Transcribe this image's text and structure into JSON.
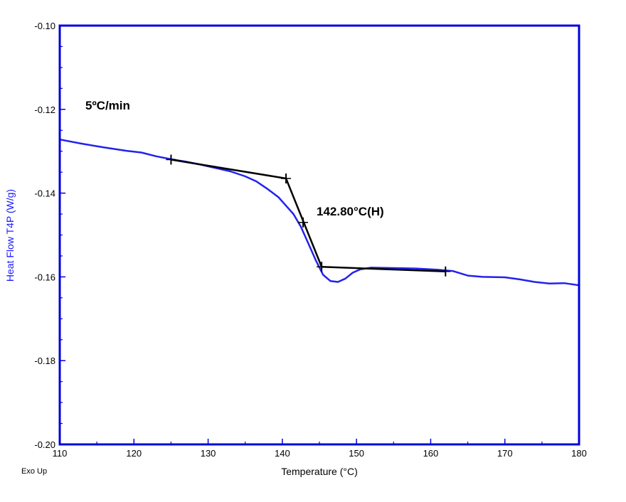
{
  "chart_data": {
    "type": "line",
    "xlabel": "Temperature  (°C)",
    "ylabel": "Heat Flow T4P (W/g)",
    "xlim": [
      110,
      180
    ],
    "ylim": [
      -0.2,
      -0.1
    ],
    "x_ticks": [
      "110",
      "120",
      "130",
      "140",
      "150",
      "160",
      "170",
      "180"
    ],
    "y_ticks": [
      "-0.20",
      "-0.18",
      "-0.16",
      "-0.14",
      "-0.12",
      "-0.10"
    ],
    "corner_label": "Exo Up",
    "annotations": {
      "rate": "5ºC/min",
      "transition": "142.80°C(H)"
    },
    "colors": {
      "axis": "#0000dd",
      "curve": "#2222ee",
      "construction": "#000000",
      "ylabel": "#1a1aff"
    },
    "series": [
      {
        "values": [
          [
            110,
            -0.1272
          ],
          [
            113,
            -0.1282
          ],
          [
            116,
            -0.1291
          ],
          [
            119,
            -0.1299
          ],
          [
            121,
            -0.1303
          ],
          [
            123,
            -0.1312
          ],
          [
            125,
            -0.1319
          ],
          [
            127,
            -0.1325
          ],
          [
            129,
            -0.1332
          ],
          [
            131,
            -0.134
          ],
          [
            133,
            -0.1348
          ],
          [
            135,
            -0.136
          ],
          [
            136.5,
            -0.1372
          ],
          [
            138,
            -0.139
          ],
          [
            139.5,
            -0.141
          ],
          [
            140.5,
            -0.143
          ],
          [
            141.5,
            -0.145
          ],
          [
            142.5,
            -0.148
          ],
          [
            143.5,
            -0.152
          ],
          [
            144.5,
            -0.156
          ],
          [
            145.5,
            -0.1595
          ],
          [
            146.5,
            -0.161
          ],
          [
            147.5,
            -0.1612
          ],
          [
            148.5,
            -0.1604
          ],
          [
            149.5,
            -0.159
          ],
          [
            150.5,
            -0.1582
          ],
          [
            152,
            -0.1578
          ],
          [
            155,
            -0.1579
          ],
          [
            158,
            -0.158
          ],
          [
            161,
            -0.1583
          ],
          [
            163,
            -0.1586
          ],
          [
            165,
            -0.1597
          ],
          [
            167,
            -0.16
          ],
          [
            170,
            -0.1601
          ],
          [
            172,
            -0.1606
          ],
          [
            174,
            -0.1612
          ],
          [
            176,
            -0.1616
          ],
          [
            178,
            -0.1615
          ],
          [
            180,
            -0.162
          ]
        ]
      }
    ],
    "construction_lines": [
      [
        [
          125,
          -0.132
        ],
        [
          140.5,
          -0.1365
        ]
      ],
      [
        [
          140.5,
          -0.1365
        ],
        [
          145.3,
          -0.1576
        ]
      ],
      [
        [
          145.3,
          -0.1576
        ],
        [
          162,
          -0.1587
        ]
      ]
    ],
    "construction_marks": [
      [
        125,
        -0.132
      ],
      [
        140.5,
        -0.1365
      ],
      [
        142.8,
        -0.147
      ],
      [
        145.3,
        -0.1576
      ],
      [
        162,
        -0.1587
      ]
    ]
  }
}
